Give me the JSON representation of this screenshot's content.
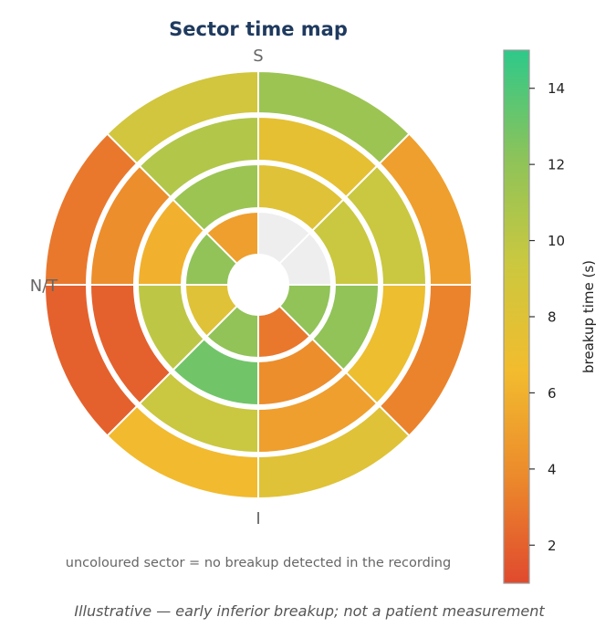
{
  "chart_data": {
    "type": "heatmap",
    "title": "Sector time map",
    "orientation_labels": {
      "top": "S",
      "left": "N/T",
      "bottom": "I"
    },
    "angle_order": "clockwise from top; 8 sectors of 45 degrees per ring",
    "rings": [
      {
        "name": "ring-1-innermost",
        "values": [
          null,
          null,
          12,
          3,
          12,
          8,
          12,
          5
        ]
      },
      {
        "name": "ring-2",
        "values": [
          8,
          9.5,
          12,
          4,
          13,
          10,
          6,
          11.5
        ]
      },
      {
        "name": "ring-3",
        "values": [
          7.5,
          9.5,
          7,
          5,
          9.5,
          2,
          4,
          10.5
        ]
      },
      {
        "name": "ring-4-outermost",
        "values": [
          11.5,
          5,
          3.5,
          8,
          6.5,
          2,
          3,
          9
        ]
      }
    ],
    "missing_color": "#eeeeee",
    "colorbar": {
      "label": "breakup time (s)",
      "range": [
        1,
        15
      ],
      "ticks": [
        2,
        4,
        6,
        8,
        10,
        12,
        14
      ],
      "colors": [
        "#e04a2e",
        "#ec8a2c",
        "#f2bc2e",
        "#cbc83f",
        "#8cc35a",
        "#2ec98a"
      ]
    },
    "note": "uncoloured sector = no breakup detected in the recording",
    "caption": "Illustrative — early inferior breakup; not a patient measurement"
  }
}
